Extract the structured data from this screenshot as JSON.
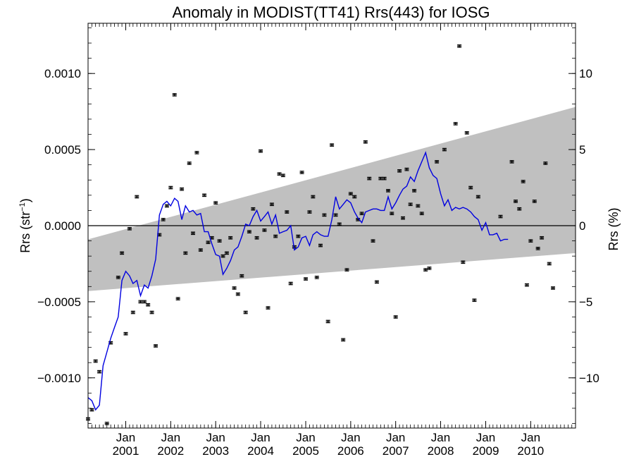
{
  "chart_data": {
    "type": "line",
    "title": "Anomaly in MODIST(TT41) Rrs(443) for IOSG",
    "ylabel_left": "Rrs (str",
    "ylabel_left_sup": "−1",
    "ylabel_left_close": ")",
    "ylabel_right": "Rrs (%)",
    "x_range": [
      "2000-03-01",
      "2010-12-31"
    ],
    "ylim": [
      -0.00133,
      0.00133
    ],
    "ylim_right": [
      -13.3,
      13.3
    ],
    "grid": false,
    "x_ticks": [
      {
        "date": "2001-01-01",
        "month": "Jan",
        "year": "2001"
      },
      {
        "date": "2002-01-01",
        "month": "Jan",
        "year": "2002"
      },
      {
        "date": "2003-01-01",
        "month": "Jan",
        "year": "2003"
      },
      {
        "date": "2004-01-01",
        "month": "Jan",
        "year": "2004"
      },
      {
        "date": "2005-01-01",
        "month": "Jan",
        "year": "2005"
      },
      {
        "date": "2006-01-01",
        "month": "Jan",
        "year": "2006"
      },
      {
        "date": "2007-01-01",
        "month": "Jan",
        "year": "2007"
      },
      {
        "date": "2008-01-01",
        "month": "Jan",
        "year": "2008"
      },
      {
        "date": "2009-01-01",
        "month": "Jan",
        "year": "2009"
      },
      {
        "date": "2010-01-01",
        "month": "Jan",
        "year": "2010"
      }
    ],
    "y_ticks_left": [
      {
        "value": 0.001,
        "label": "0.0010"
      },
      {
        "value": 0.0005,
        "label": "0.0005"
      },
      {
        "value": 0.0,
        "label": "0.0000"
      },
      {
        "value": -0.0005,
        "label": "−0.0005"
      },
      {
        "value": -0.001,
        "label": "−0.0010"
      }
    ],
    "y_ticks_right": [
      {
        "value": 10,
        "label": "10"
      },
      {
        "value": 5,
        "label": "5"
      },
      {
        "value": 0,
        "label": "0"
      },
      {
        "value": -5,
        "label": "−5"
      },
      {
        "value": -10,
        "label": "−10"
      }
    ],
    "zero_line": 0.0,
    "trend_band": {
      "color": "#c0c0c0",
      "upper": [
        {
          "x": "2000-03-01",
          "y": -9e-05
        },
        {
          "x": "2010-12-31",
          "y": 0.00078
        }
      ],
      "lower": [
        {
          "x": "2000-03-01",
          "y": -0.00043
        },
        {
          "x": "2010-12-31",
          "y": -0.00018
        }
      ]
    },
    "series": [
      {
        "kind": "points",
        "color": "#000000",
        "error_bar": 8e-06,
        "points": [
          [
            "2000-03-01",
            -0.00127
          ],
          [
            "2000-04-01",
            -0.00121
          ],
          [
            "2000-05-01",
            -0.00089
          ],
          [
            "2000-06-01",
            -0.00096
          ],
          [
            "2000-08-01",
            -0.0013
          ],
          [
            "2000-09-01",
            -0.00077
          ],
          [
            "2000-11-01",
            -0.00034
          ],
          [
            "2000-12-01",
            -0.00018
          ],
          [
            "2001-01-01",
            -0.00071
          ],
          [
            "2001-02-01",
            -2e-05
          ],
          [
            "2001-03-01",
            -0.00057
          ],
          [
            "2001-04-01",
            0.00019
          ],
          [
            "2001-05-01",
            -0.0005
          ],
          [
            "2001-06-01",
            -0.0005
          ],
          [
            "2001-07-01",
            -0.00052
          ],
          [
            "2001-08-01",
            -0.00057
          ],
          [
            "2001-09-01",
            -0.00079
          ],
          [
            "2001-10-01",
            -6e-05
          ],
          [
            "2001-11-01",
            4e-05
          ],
          [
            "2001-12-01",
            0.00013
          ],
          [
            "2002-01-01",
            0.00025
          ],
          [
            "2002-02-01",
            0.00086
          ],
          [
            "2002-03-01",
            -0.00048
          ],
          [
            "2002-04-01",
            0.00024
          ],
          [
            "2002-05-01",
            -0.00018
          ],
          [
            "2002-06-01",
            0.00041
          ],
          [
            "2002-07-01",
            -5e-05
          ],
          [
            "2002-08-01",
            0.00048
          ],
          [
            "2002-09-01",
            -0.00016
          ],
          [
            "2002-10-01",
            0.0002
          ],
          [
            "2002-11-01",
            -0.00011
          ],
          [
            "2002-12-01",
            -8e-05
          ],
          [
            "2003-01-01",
            0.00015
          ],
          [
            "2003-02-01",
            -0.0001
          ],
          [
            "2003-03-01",
            -0.0002
          ],
          [
            "2003-04-01",
            -0.00018
          ],
          [
            "2003-05-01",
            -8e-05
          ],
          [
            "2003-06-01",
            -0.00041
          ],
          [
            "2003-07-01",
            -0.00045
          ],
          [
            "2003-08-01",
            -0.00033
          ],
          [
            "2003-09-01",
            -0.00057
          ],
          [
            "2003-10-01",
            -4e-05
          ],
          [
            "2003-11-01",
            0.00011
          ],
          [
            "2003-12-01",
            -8e-05
          ],
          [
            "2004-01-01",
            0.00049
          ],
          [
            "2004-02-01",
            -3e-05
          ],
          [
            "2004-03-01",
            -0.00054
          ],
          [
            "2004-04-01",
            0.00014
          ],
          [
            "2004-05-01",
            -7e-05
          ],
          [
            "2004-06-01",
            0.00034
          ],
          [
            "2004-07-01",
            0.00033
          ],
          [
            "2004-08-01",
            9e-05
          ],
          [
            "2004-09-01",
            -0.00038
          ],
          [
            "2004-10-01",
            -0.00014
          ],
          [
            "2004-11-01",
            -7e-05
          ],
          [
            "2004-12-01",
            0.00035
          ],
          [
            "2005-01-01",
            -0.00035
          ],
          [
            "2005-02-01",
            9e-05
          ],
          [
            "2005-03-01",
            0.00019
          ],
          [
            "2005-04-01",
            -0.00034
          ],
          [
            "2005-05-01",
            -0.00013
          ],
          [
            "2005-06-01",
            7e-05
          ],
          [
            "2005-07-01",
            -0.00063
          ],
          [
            "2005-08-01",
            0.00053
          ],
          [
            "2005-09-01",
            7e-05
          ],
          [
            "2005-10-01",
            1e-05
          ],
          [
            "2005-11-01",
            -0.00075
          ],
          [
            "2005-12-01",
            -0.00029
          ],
          [
            "2006-01-01",
            0.00021
          ],
          [
            "2006-02-01",
            0.00019
          ],
          [
            "2006-03-01",
            4e-05
          ],
          [
            "2006-04-01",
            8e-05
          ],
          [
            "2006-05-01",
            0.00055
          ],
          [
            "2006-06-01",
            0.00031
          ],
          [
            "2006-07-01",
            -0.0001
          ],
          [
            "2006-08-01",
            -0.00037
          ],
          [
            "2006-09-01",
            0.00031
          ],
          [
            "2006-10-01",
            0.00031
          ],
          [
            "2006-11-01",
            0.00023
          ],
          [
            "2006-12-01",
            8e-05
          ],
          [
            "2007-01-01",
            -0.0006
          ],
          [
            "2007-02-01",
            0.00036
          ],
          [
            "2007-03-01",
            5e-05
          ],
          [
            "2007-04-01",
            0.00037
          ],
          [
            "2007-05-01",
            0.00014
          ],
          [
            "2007-06-01",
            0.00023
          ],
          [
            "2007-07-01",
            0.00013
          ],
          [
            "2007-08-01",
            8e-05
          ],
          [
            "2007-09-01",
            -0.00029
          ],
          [
            "2007-10-01",
            -0.00028
          ],
          [
            "2007-12-01",
            0.00042
          ],
          [
            "2008-02-01",
            0.0005
          ],
          [
            "2008-05-01",
            0.00067
          ],
          [
            "2008-06-01",
            0.00118
          ],
          [
            "2008-07-01",
            -0.00024
          ],
          [
            "2008-08-01",
            0.00061
          ],
          [
            "2008-09-01",
            0.00025
          ],
          [
            "2008-10-01",
            -0.00049
          ],
          [
            "2008-11-01",
            0.00019
          ],
          [
            "2009-05-01",
            6e-05
          ],
          [
            "2009-08-01",
            0.00042
          ],
          [
            "2009-09-01",
            0.00016
          ],
          [
            "2009-10-01",
            0.00011
          ],
          [
            "2009-11-01",
            0.00029
          ],
          [
            "2009-12-01",
            -0.00039
          ],
          [
            "2010-01-01",
            -0.0001
          ],
          [
            "2010-02-01",
            0.00016
          ],
          [
            "2010-03-01",
            -0.00015
          ],
          [
            "2010-04-01",
            -8e-05
          ],
          [
            "2010-05-01",
            0.00041
          ],
          [
            "2010-06-01",
            -0.00025
          ],
          [
            "2010-07-01",
            -0.00041
          ]
        ]
      },
      {
        "kind": "line",
        "color": "#0000e0",
        "points": [
          [
            "2000-03-01",
            -0.00113
          ],
          [
            "2000-04-01",
            -0.00115
          ],
          [
            "2000-05-01",
            -0.00121
          ],
          [
            "2000-06-01",
            -0.00118
          ],
          [
            "2000-07-01",
            -0.00092
          ],
          [
            "2000-08-01",
            -0.00083
          ],
          [
            "2000-09-01",
            -0.00074
          ],
          [
            "2000-10-01",
            -0.00067
          ],
          [
            "2000-11-01",
            -0.0006
          ],
          [
            "2000-12-01",
            -0.00036
          ],
          [
            "2001-01-01",
            -0.0003
          ],
          [
            "2001-02-01",
            -0.00033
          ],
          [
            "2001-03-01",
            -0.00038
          ],
          [
            "2001-04-01",
            -0.00036
          ],
          [
            "2001-05-01",
            -0.00046
          ],
          [
            "2001-06-01",
            -0.00039
          ],
          [
            "2001-07-01",
            -0.00041
          ],
          [
            "2001-08-01",
            -0.00033
          ],
          [
            "2001-09-01",
            -0.00022
          ],
          [
            "2001-10-01",
            7e-05
          ],
          [
            "2001-11-01",
            0.00014
          ],
          [
            "2001-12-01",
            0.00016
          ],
          [
            "2002-01-01",
            0.00013
          ],
          [
            "2002-02-01",
            0.00018
          ],
          [
            "2002-03-01",
            0.00016
          ],
          [
            "2002-04-01",
            4e-05
          ],
          [
            "2002-05-01",
            0.00013
          ],
          [
            "2002-06-01",
            9e-05
          ],
          [
            "2002-07-01",
            0.0001
          ],
          [
            "2002-08-01",
            7e-05
          ],
          [
            "2002-09-01",
            8e-05
          ],
          [
            "2002-10-01",
            -4e-05
          ],
          [
            "2002-11-01",
            -4e-05
          ],
          [
            "2002-12-01",
            -0.00012
          ],
          [
            "2003-01-01",
            -0.00019
          ],
          [
            "2003-02-01",
            -0.0002
          ],
          [
            "2003-03-01",
            -0.00032
          ],
          [
            "2003-04-01",
            -0.00028
          ],
          [
            "2003-05-01",
            -0.00023
          ],
          [
            "2003-06-01",
            -0.00016
          ],
          [
            "2003-07-01",
            -0.00014
          ],
          [
            "2003-08-01",
            -7e-05
          ],
          [
            "2003-09-01",
            1e-05
          ],
          [
            "2003-10-01",
            0.0
          ],
          [
            "2003-11-01",
            6e-05
          ],
          [
            "2003-12-01",
            0.0001
          ],
          [
            "2004-01-01",
            3e-05
          ],
          [
            "2004-02-01",
            6e-05
          ],
          [
            "2004-03-01",
            9e-05
          ],
          [
            "2004-04-01",
            1e-05
          ],
          [
            "2004-05-01",
            7e-05
          ],
          [
            "2004-06-01",
            -5e-05
          ],
          [
            "2004-07-01",
            -4e-05
          ],
          [
            "2004-08-01",
            -3e-05
          ],
          [
            "2004-09-01",
            0.0
          ],
          [
            "2004-10-01",
            -0.00016
          ],
          [
            "2004-11-01",
            -0.00014
          ],
          [
            "2004-12-01",
            -8e-05
          ],
          [
            "2005-01-01",
            -7e-05
          ],
          [
            "2005-02-01",
            -0.00013
          ],
          [
            "2005-03-01",
            -6e-05
          ],
          [
            "2005-04-01",
            -4e-05
          ],
          [
            "2005-05-01",
            -6e-05
          ],
          [
            "2005-06-01",
            -7e-05
          ],
          [
            "2005-07-01",
            -7e-05
          ],
          [
            "2005-08-01",
            4e-05
          ],
          [
            "2005-09-01",
            0.00019
          ],
          [
            "2005-10-01",
            0.00011
          ],
          [
            "2005-11-01",
            0.00014
          ],
          [
            "2005-12-01",
            0.00017
          ],
          [
            "2006-01-01",
            0.00015
          ],
          [
            "2006-02-01",
            9e-05
          ],
          [
            "2006-03-01",
            5e-05
          ],
          [
            "2006-04-01",
            2e-05
          ],
          [
            "2006-05-01",
            9e-05
          ],
          [
            "2006-06-01",
            0.0001
          ],
          [
            "2006-07-01",
            0.00011
          ],
          [
            "2006-08-01",
            0.00011
          ],
          [
            "2006-09-01",
            0.0001
          ],
          [
            "2006-10-01",
            0.0001
          ],
          [
            "2006-11-01",
            0.00019
          ],
          [
            "2006-12-01",
            0.00011
          ],
          [
            "2007-01-01",
            0.00015
          ],
          [
            "2007-02-01",
            0.0002
          ],
          [
            "2007-03-01",
            0.00024
          ],
          [
            "2007-04-01",
            0.00026
          ],
          [
            "2007-05-01",
            0.00032
          ],
          [
            "2007-06-01",
            0.00029
          ],
          [
            "2007-07-01",
            0.00036
          ],
          [
            "2007-08-01",
            0.00042
          ],
          [
            "2007-09-01",
            0.00048
          ],
          [
            "2007-10-01",
            0.00038
          ],
          [
            "2007-11-01",
            0.00033
          ],
          [
            "2007-12-01",
            0.00031
          ],
          [
            "2008-01-01",
            0.00021
          ],
          [
            "2008-02-01",
            0.00013
          ],
          [
            "2008-03-01",
            0.00017
          ],
          [
            "2008-04-01",
            0.0001
          ],
          [
            "2008-05-01",
            0.00012
          ],
          [
            "2008-06-01",
            0.00011
          ],
          [
            "2008-07-01",
            0.00012
          ],
          [
            "2008-08-01",
            0.00011
          ],
          [
            "2008-09-01",
            9e-05
          ],
          [
            "2008-10-01",
            6e-05
          ],
          [
            "2008-11-01",
            4e-05
          ],
          [
            "2008-12-01",
            -3e-05
          ],
          [
            "2009-01-01",
            2e-05
          ],
          [
            "2009-02-01",
            -6e-05
          ],
          [
            "2009-03-01",
            -6e-05
          ],
          [
            "2009-04-01",
            -5e-05
          ],
          [
            "2009-05-01",
            -0.0001
          ],
          [
            "2009-06-01",
            -9e-05
          ],
          [
            "2009-07-01",
            -9e-05
          ]
        ]
      }
    ]
  }
}
